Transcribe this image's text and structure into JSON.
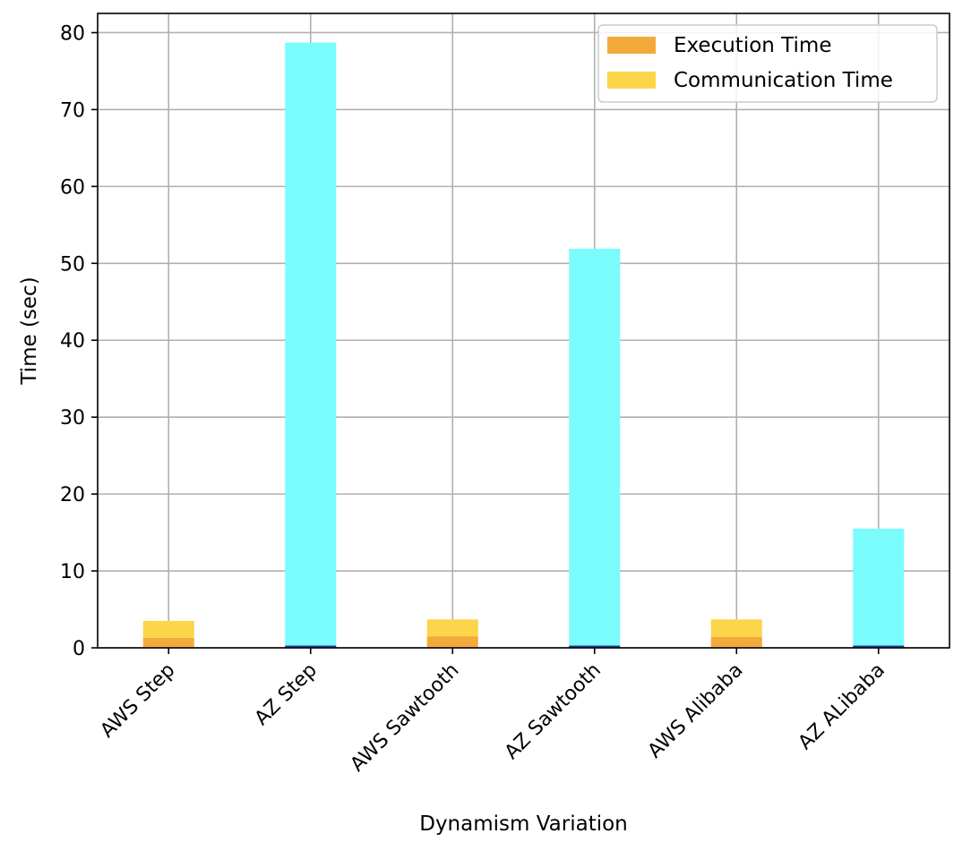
{
  "chart_data": {
    "type": "bar",
    "stacked": true,
    "title": "",
    "xlabel": "Dynamism Variation",
    "ylabel": "Time (sec)",
    "categories": [
      "AWS Step",
      "AZ Step",
      "AWS Sawtooth",
      "AZ Sawtooth",
      "AWS Alibaba",
      "AZ ALibaba"
    ],
    "ylim": [
      0,
      82.5
    ],
    "yticks": [
      0,
      10,
      20,
      30,
      40,
      50,
      60,
      70,
      80
    ],
    "grid": true,
    "legend_position": "top-right",
    "series": [
      {
        "name": "Execution Time",
        "color": "#F4A93B",
        "values": [
          1.3,
          0.1,
          1.5,
          0.2,
          1.4,
          0.2
        ]
      },
      {
        "name": "Communication Time",
        "color": "#FBD64A",
        "values": [
          2.2,
          0.0,
          2.2,
          0.0,
          2.3,
          0.0
        ]
      },
      {
        "color": "#7AFCFC",
        "values": [
          0.0,
          78.6,
          0.0,
          51.7,
          0.0,
          15.3
        ]
      }
    ],
    "small_segment_color": "#1A3FA0"
  }
}
